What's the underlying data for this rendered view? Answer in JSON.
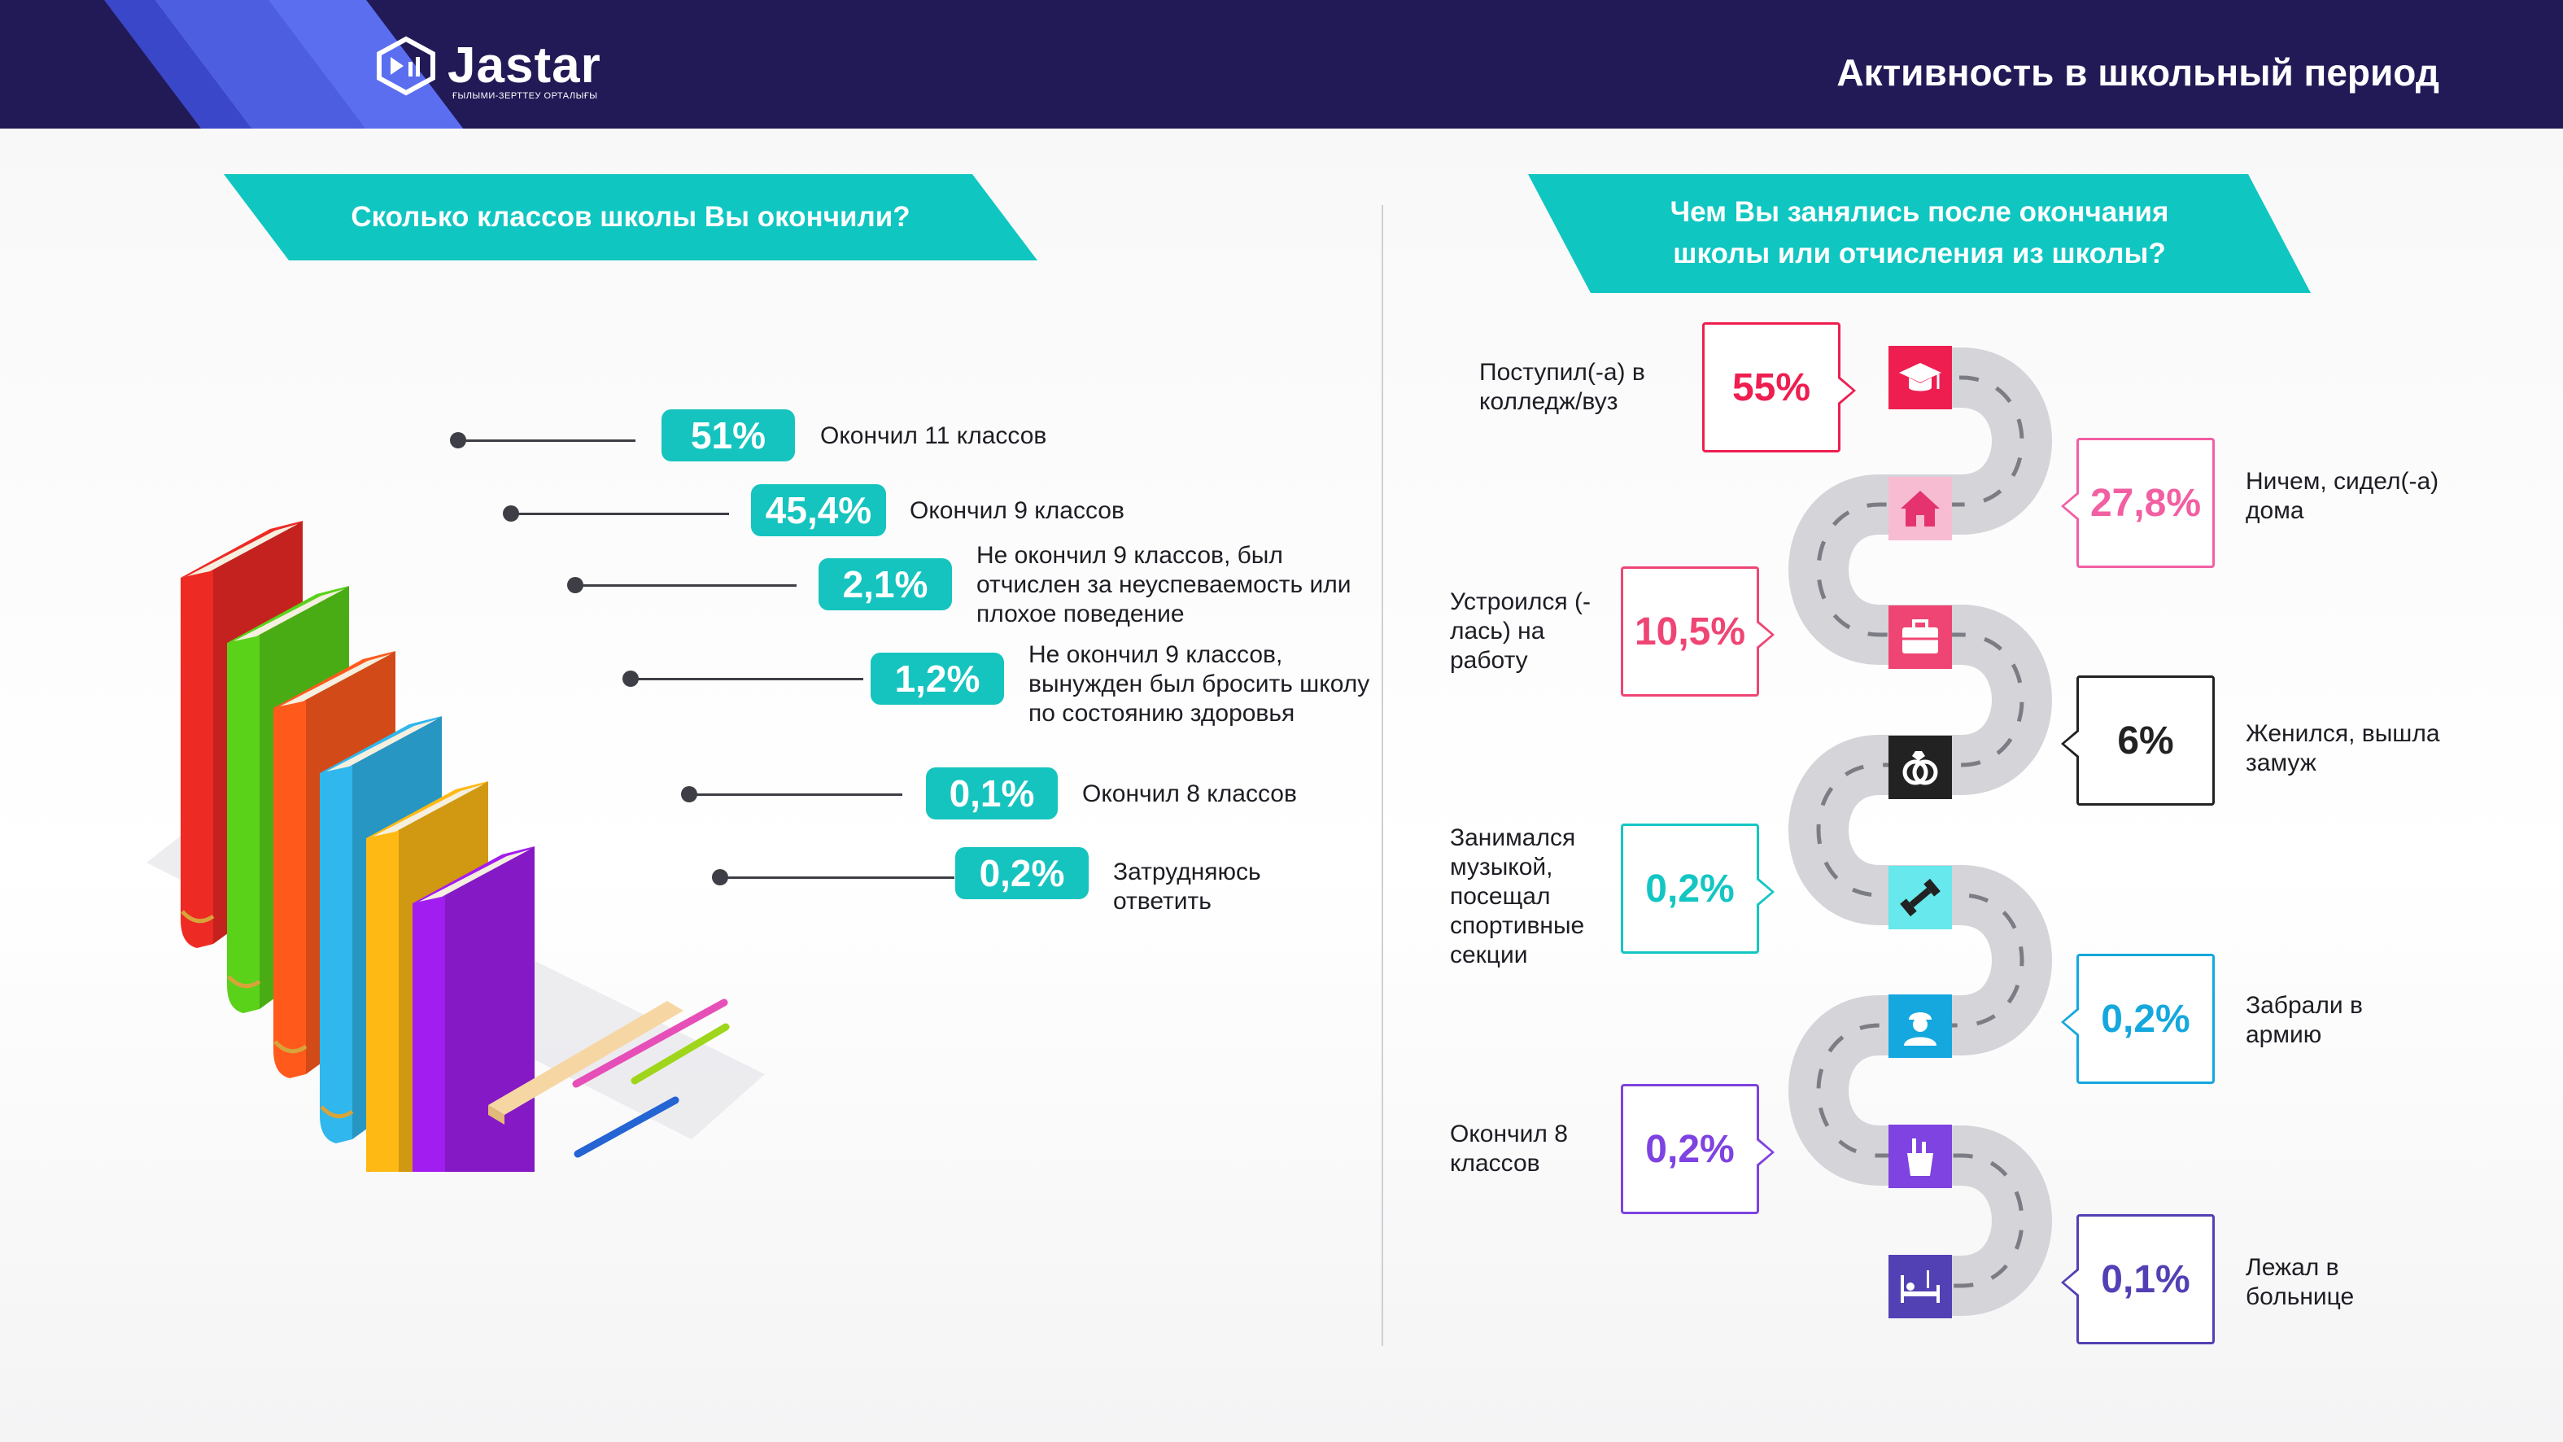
{
  "header": {
    "logo_text": "Jastar",
    "logo_sub": "ҒЫЛЫМИ-ЗЕРТТЕУ ОРТАЛЫҒЫ",
    "title": "Активность в школьный период"
  },
  "left": {
    "question": "Сколько классов школы Вы окончили?",
    "items": [
      {
        "value": "51%",
        "label": "Окончил 11 классов"
      },
      {
        "value": "45,4%",
        "label": "Окончил 9 классов"
      },
      {
        "value": "2,1%",
        "label": "Не окончил 9 классов, был отчислен за неуспеваемость или плохое поведение"
      },
      {
        "value": "1,2%",
        "label": "Не окончил 9 классов, вынужден был бросить школу по состоянию здоровья"
      },
      {
        "value": "0,1%",
        "label": "Окончил 8 классов"
      },
      {
        "value": "0,2%",
        "label": "Затрудняюсь ответить"
      }
    ],
    "book_colors": [
      "#ee2a24",
      "#5ad21a",
      "#ff5a1c",
      "#2fb7ee",
      "#ffb915",
      "#a21ef0"
    ]
  },
  "right": {
    "question": "Чем Вы занялись после окончания школы или отчисления из школы?",
    "steps": [
      {
        "value": "55%",
        "label": "Поступил(-а) в колледж/вуз",
        "color": "#ee1e50",
        "icon": "graduation-cap-icon"
      },
      {
        "value": "27,8%",
        "label": "Ничем, сидел(-а) дома",
        "color": "#f25fa3",
        "icon": "home-icon"
      },
      {
        "value": "10,5%",
        "label": "Устроился (-лась) на работу",
        "color": "#ef4574",
        "icon": "briefcase-icon"
      },
      {
        "value": "6%",
        "label": "Женился, вышла замуж",
        "color": "#222222",
        "icon": "wedding-rings-icon"
      },
      {
        "value": "0,2%",
        "label": "Занимался музыкой, посещал спортивные секции",
        "color": "#14c6c3",
        "icon": "dumbbell-icon"
      },
      {
        "value": "0,2%",
        "label": "Забрали в армию",
        "color": "#15a8de",
        "icon": "soldier-icon"
      },
      {
        "value": "0,2%",
        "label": "Окончил 8 классов",
        "color": "#7e43e0",
        "icon": "pencil-cup-icon"
      },
      {
        "value": "0,1%",
        "label": "Лежал в больнице",
        "color": "#5241b4",
        "icon": "hospital-bed-icon"
      }
    ]
  }
}
